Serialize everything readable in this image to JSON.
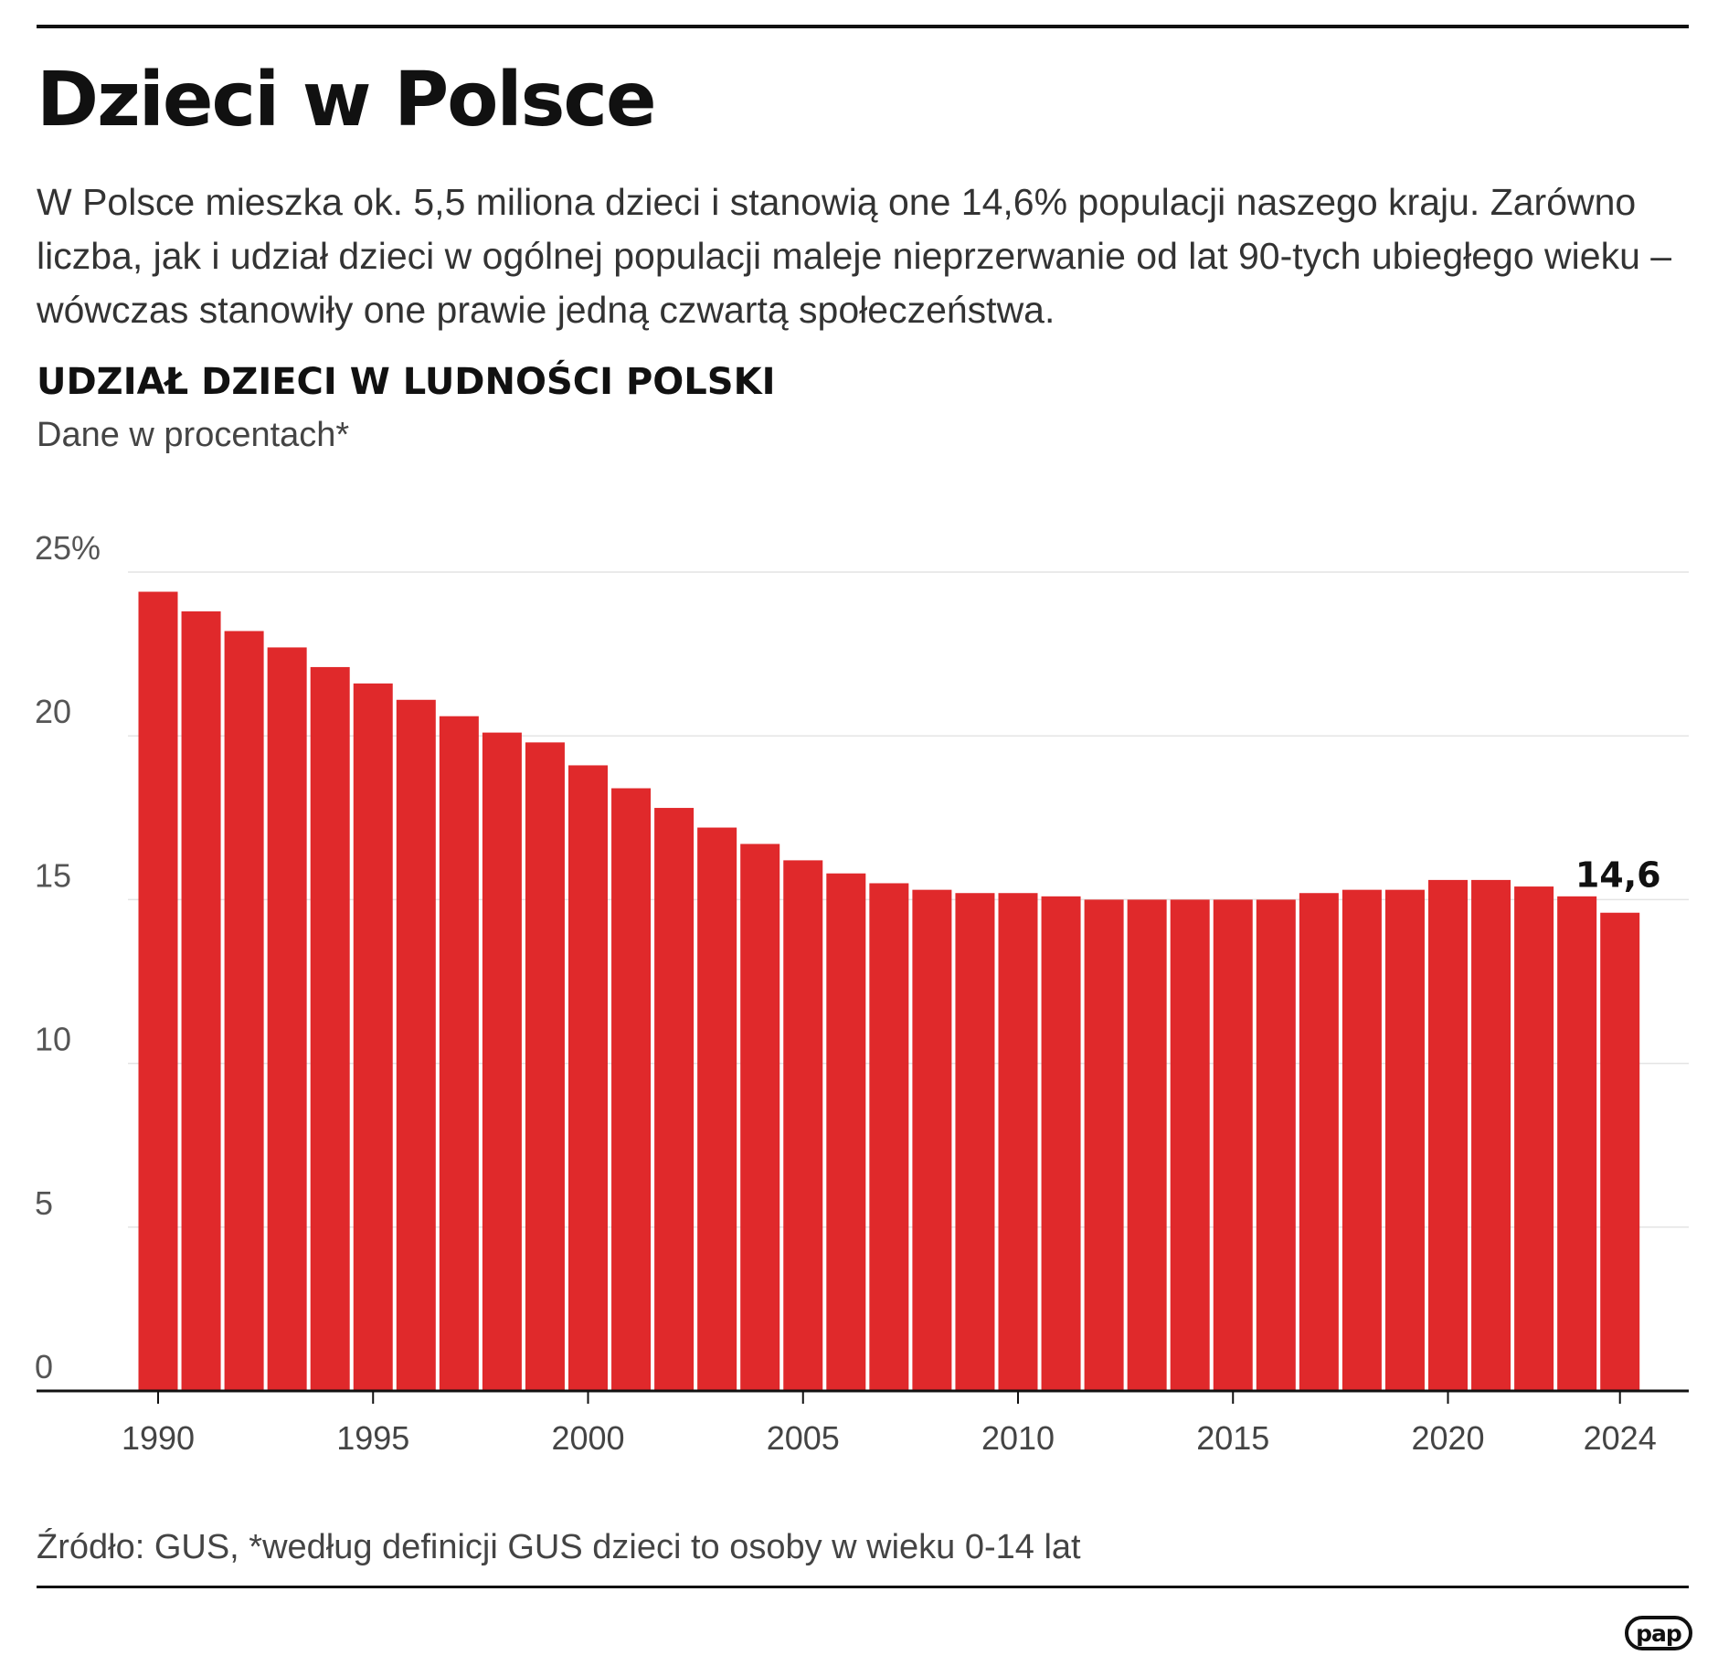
{
  "header": {
    "title": "Dzieci w Polsce",
    "lead": "W Polsce mieszka ok. 5,5 miliona dzieci i stanowią one 14,6% populacji naszego kraju. Zarówno liczba, jak i udział dzieci w ogólnej populacji maleje nieprzerwanie od lat 90-tych ubiegłego wieku – wówczas stanowiły one prawie jedną czwartą społeczeństwa."
  },
  "chart_data": {
    "type": "bar",
    "title": "UDZIAŁ DZIECI W LUDNOŚCI POLSKI",
    "subtitle": "Dane w procentach*",
    "xlabel": "",
    "ylabel": "",
    "ylim": [
      0,
      25
    ],
    "grid": true,
    "legend": "none",
    "bar_color": "#e0292b",
    "categories": [
      1990,
      1991,
      1992,
      1993,
      1994,
      1995,
      1996,
      1997,
      1998,
      1999,
      2000,
      2001,
      2002,
      2003,
      2004,
      2005,
      2006,
      2007,
      2008,
      2009,
      2010,
      2011,
      2012,
      2013,
      2014,
      2015,
      2016,
      2017,
      2018,
      2019,
      2020,
      2021,
      2022,
      2023,
      2024
    ],
    "values": [
      24.4,
      23.8,
      23.2,
      22.7,
      22.1,
      21.6,
      21.1,
      20.6,
      20.1,
      19.8,
      19.1,
      18.4,
      17.8,
      17.2,
      16.7,
      16.2,
      15.8,
      15.5,
      15.3,
      15.2,
      15.2,
      15.1,
      15.0,
      15.0,
      15.0,
      15.0,
      15.0,
      15.2,
      15.3,
      15.3,
      15.6,
      15.6,
      15.4,
      15.1,
      14.6
    ],
    "y_ticks": [
      {
        "value": 0,
        "label": "0"
      },
      {
        "value": 5,
        "label": "5"
      },
      {
        "value": 10,
        "label": "10"
      },
      {
        "value": 15,
        "label": "15"
      },
      {
        "value": 20,
        "label": "20"
      },
      {
        "value": 25,
        "label": "25%"
      }
    ],
    "x_ticks": [
      {
        "value": 1990,
        "label": "1990"
      },
      {
        "value": 1995,
        "label": "1995"
      },
      {
        "value": 2000,
        "label": "2000"
      },
      {
        "value": 2005,
        "label": "2005"
      },
      {
        "value": 2010,
        "label": "2010"
      },
      {
        "value": 2015,
        "label": "2015"
      },
      {
        "value": 2020,
        "label": "2020"
      },
      {
        "value": 2024,
        "label": "2024"
      }
    ],
    "annotations": [
      {
        "x": 2024,
        "text": "14,6"
      }
    ]
  },
  "footer": {
    "source": "Źródło: GUS, *według definicji GUS dzieci to osoby w wieku 0-14 lat",
    "logo_text": "pap"
  }
}
